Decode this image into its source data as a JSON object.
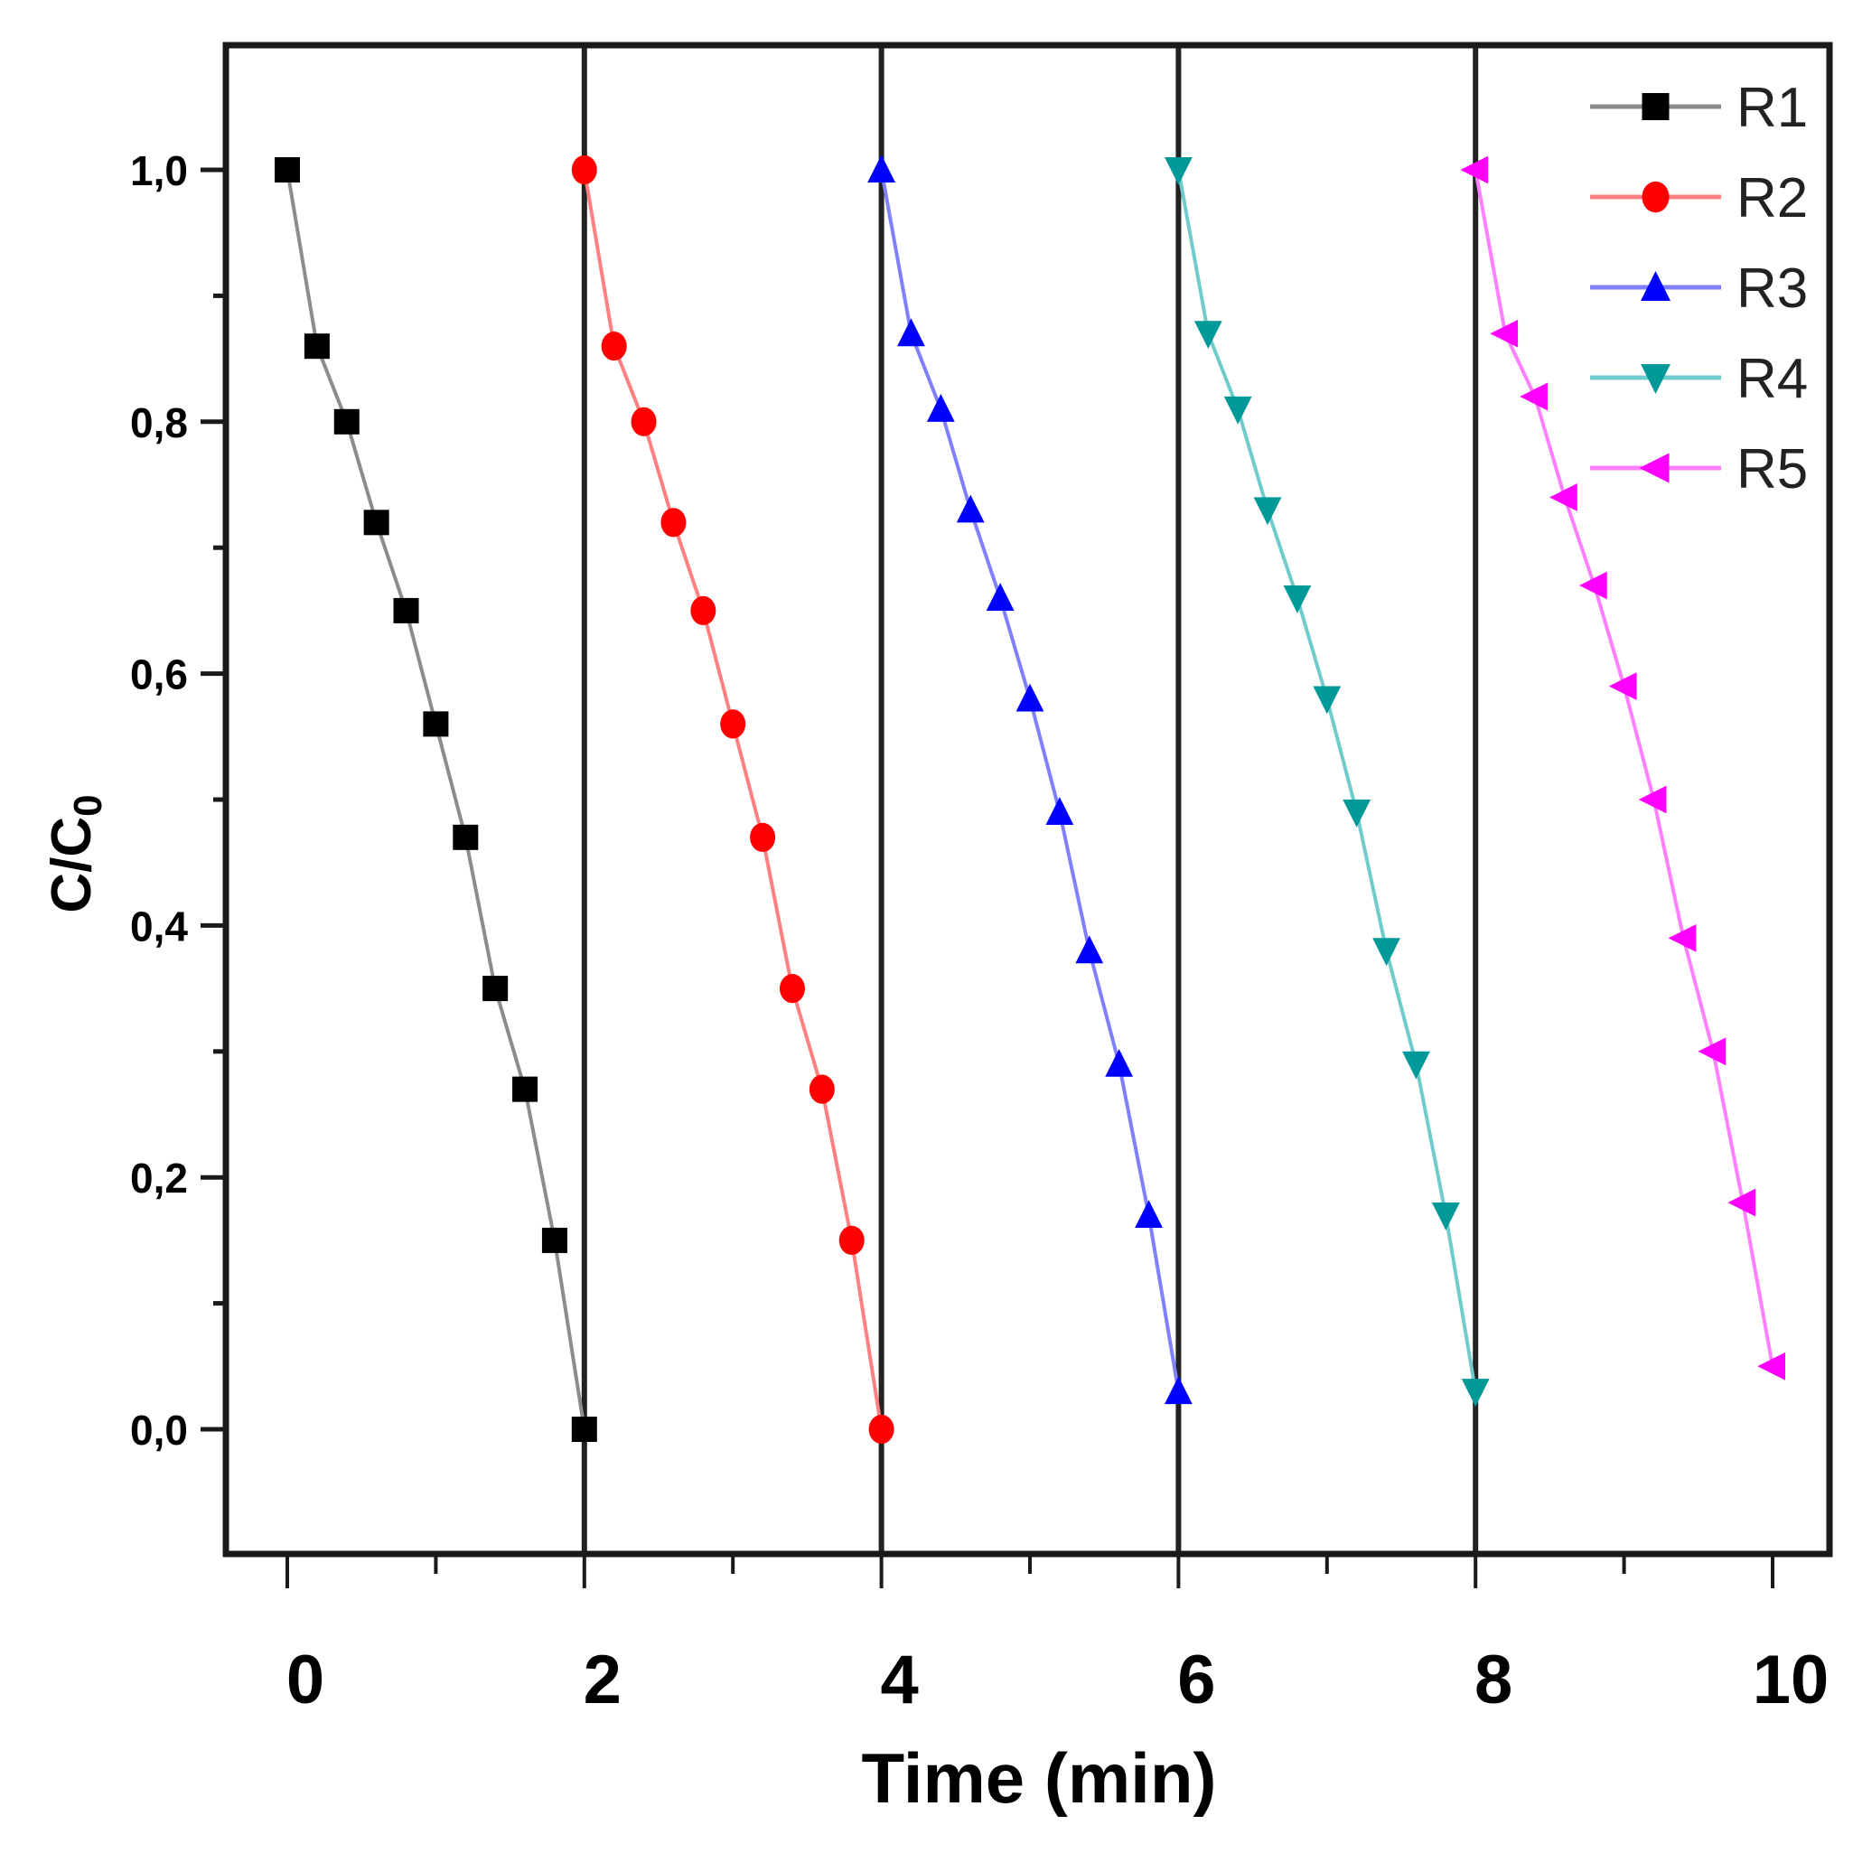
{
  "chart_data": {
    "type": "line",
    "title": "",
    "xlabel": "Time (min)",
    "ylabel": "C/C0",
    "ylabel_main": "C/C",
    "ylabel_sub": "0",
    "xlim": [
      -0.2,
      10.4
    ],
    "ylim": [
      -0.1,
      1.1
    ],
    "x_ticks": [
      0,
      2,
      4,
      6,
      8,
      10
    ],
    "x_tick_labels": [
      "0",
      "2",
      "4",
      "6",
      "8",
      "10"
    ],
    "y_ticks": [
      0.0,
      0.2,
      0.4,
      0.6,
      0.8,
      1.0
    ],
    "y_tick_labels": [
      "0,0",
      "0,2",
      "0,4",
      "0,6",
      "0,8",
      "1,0"
    ],
    "grid": false,
    "vertical_dividers": [
      2,
      4,
      6,
      8
    ],
    "legend_position": "upper right",
    "series": [
      {
        "name": "R1",
        "color": "#000000",
        "line_color": "#8c8c8c",
        "marker": "square",
        "x": [
          0,
          0.2,
          0.4,
          0.6,
          0.8,
          1.0,
          1.2,
          1.4,
          1.6,
          1.8,
          2.0
        ],
        "values": [
          1.0,
          0.86,
          0.8,
          0.72,
          0.65,
          0.56,
          0.47,
          0.35,
          0.27,
          0.15,
          0.0
        ]
      },
      {
        "name": "R2",
        "color": "#ff0000",
        "line_color": "#ff8080",
        "marker": "circle",
        "x": [
          2.0,
          2.2,
          2.4,
          2.6,
          2.8,
          3.0,
          3.2,
          3.4,
          3.6,
          3.8,
          4.0
        ],
        "values": [
          1.0,
          0.86,
          0.8,
          0.72,
          0.65,
          0.56,
          0.47,
          0.35,
          0.27,
          0.15,
          0.0
        ]
      },
      {
        "name": "R3",
        "color": "#0000ff",
        "line_color": "#8080ff",
        "marker": "triangle-up",
        "x": [
          4.0,
          4.2,
          4.4,
          4.6,
          4.8,
          5.0,
          5.2,
          5.4,
          5.6,
          5.8,
          6.0
        ],
        "values": [
          1.0,
          0.87,
          0.81,
          0.73,
          0.66,
          0.58,
          0.49,
          0.38,
          0.29,
          0.17,
          0.03
        ]
      },
      {
        "name": "R4",
        "color": "#009999",
        "line_color": "#70cccc",
        "marker": "triangle-down",
        "x": [
          6.0,
          6.2,
          6.4,
          6.6,
          6.8,
          7.0,
          7.2,
          7.4,
          7.6,
          7.8,
          8.0
        ],
        "values": [
          1.0,
          0.87,
          0.81,
          0.73,
          0.66,
          0.58,
          0.49,
          0.38,
          0.29,
          0.17,
          0.03
        ]
      },
      {
        "name": "R5",
        "color": "#ff00ff",
        "line_color": "#ff80ff",
        "marker": "triangle-left",
        "x": [
          8.0,
          8.2,
          8.4,
          8.6,
          8.8,
          9.0,
          9.2,
          9.4,
          9.6,
          9.8,
          10.0
        ],
        "values": [
          1.0,
          0.87,
          0.82,
          0.74,
          0.67,
          0.59,
          0.5,
          0.39,
          0.3,
          0.18,
          0.05
        ]
      }
    ]
  },
  "legend": {
    "items": [
      {
        "label": "R1"
      },
      {
        "label": "R2"
      },
      {
        "label": "R3"
      },
      {
        "label": "R4"
      },
      {
        "label": "R5"
      }
    ]
  },
  "axes": {
    "x_title": "Time (min)",
    "y_title_main": "C/C",
    "y_title_sub": "0"
  }
}
